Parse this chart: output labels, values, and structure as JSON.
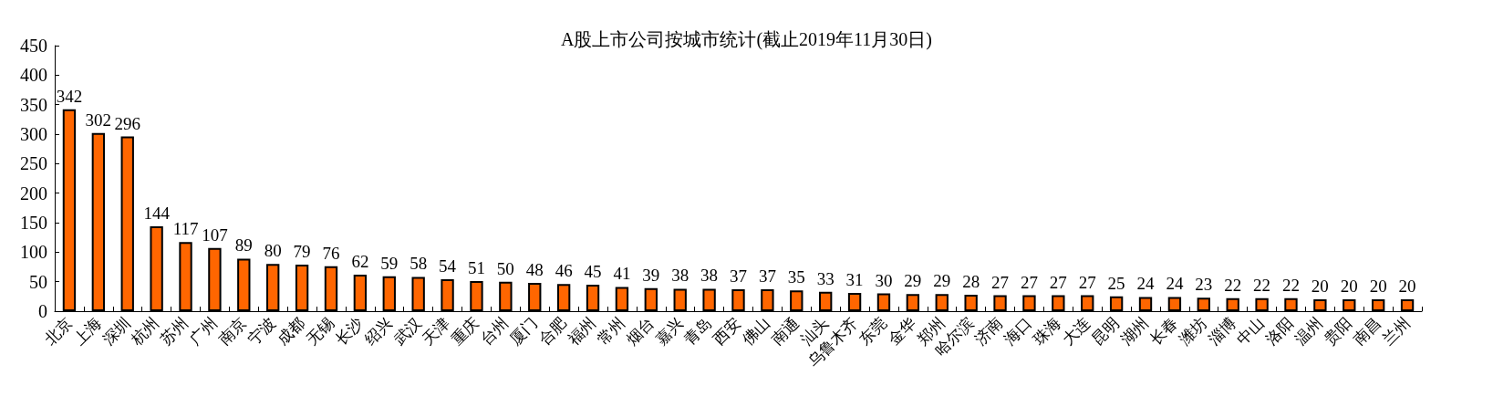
{
  "chart_data": {
    "type": "bar",
    "title": "A股上市公司按城市统计(截止2019年11月30日)",
    "categories": [
      "北京",
      "上海",
      "深圳",
      "杭州",
      "苏州",
      "广州",
      "南京",
      "宁波",
      "成都",
      "无锡",
      "长沙",
      "绍兴",
      "武汉",
      "天津",
      "重庆",
      "台州",
      "厦门",
      "合肥",
      "福州",
      "常州",
      "烟台",
      "嘉兴",
      "青岛",
      "西安",
      "佛山",
      "南通",
      "汕头",
      "乌鲁木齐",
      "东莞",
      "金华",
      "郑州",
      "哈尔滨",
      "济南",
      "海口",
      "珠海",
      "大连",
      "昆明",
      "湖州",
      "长春",
      "潍坊",
      "淄博",
      "中山",
      "洛阳",
      "温州",
      "贵阳",
      "南昌",
      "兰州"
    ],
    "values": [
      342,
      302,
      296,
      144,
      117,
      107,
      89,
      80,
      79,
      76,
      62,
      59,
      58,
      54,
      51,
      50,
      48,
      46,
      45,
      41,
      39,
      38,
      38,
      37,
      37,
      35,
      33,
      31,
      30,
      29,
      29,
      28,
      27,
      27,
      27,
      27,
      25,
      24,
      24,
      23,
      22,
      22,
      22,
      20,
      20,
      20,
      20
    ],
    "color": "#ff6600",
    "ylim": [
      0,
      450
    ],
    "yticks": [
      0,
      50,
      100,
      150,
      200,
      250,
      300,
      350,
      400,
      450
    ],
    "grid": false,
    "data_labels": true
  }
}
